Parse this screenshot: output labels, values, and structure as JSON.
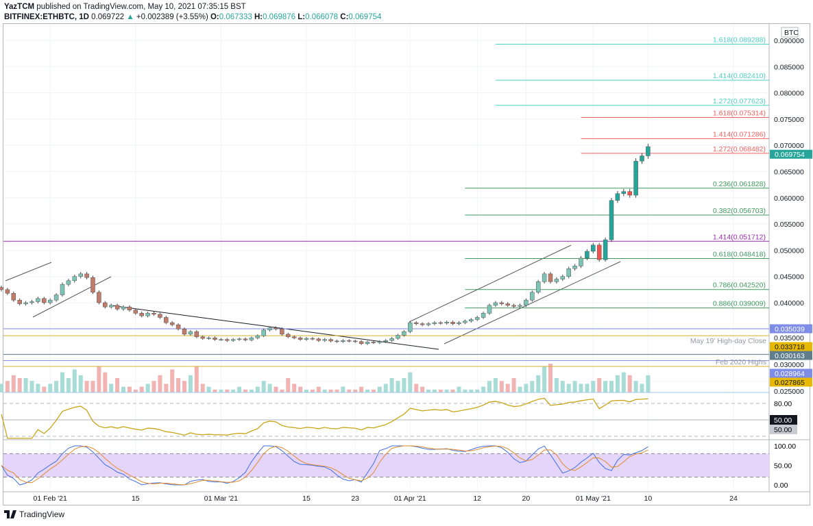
{
  "header": {
    "author": "YazTCM",
    "published": "published on TradingView.com, May 10, 2021 07:35:15 BST",
    "symbol": "BITFINEX:ETHBTC, 1D",
    "last": "0.069722",
    "change": "+0.002389 (+3.55%)",
    "o_label": "O:",
    "o": "0.067333",
    "h_label": "H:",
    "h": "0.069876",
    "l_label": "L:",
    "l": "0.066078",
    "c_label": "C:",
    "c": "0.069754"
  },
  "footer": {
    "brand": "TradingView"
  },
  "colors": {
    "up": "#26a69a",
    "down": "#ef5350",
    "teal": "#4dd0c4",
    "red": "#f06060",
    "green": "#3d9a5c",
    "purple": "#9c27b0",
    "blue": "#7e8ee8",
    "gold": "#d4b12a",
    "rsi": "#c8a415",
    "stochK": "#3f6fe0",
    "stochD": "#e08a2a",
    "band": "#e6d5fb"
  },
  "chart_data": {
    "type": "candlestick",
    "currency": "BTC",
    "start_date": "2021-01-24",
    "closes": [
      0.0425,
      0.0418,
      0.0405,
      0.0398,
      0.04,
      0.0402,
      0.0408,
      0.04,
      0.0405,
      0.0415,
      0.0435,
      0.0442,
      0.045,
      0.0455,
      0.0448,
      0.042,
      0.04,
      0.0392,
      0.0395,
      0.0388,
      0.0392,
      0.0386,
      0.038,
      0.0375,
      0.038,
      0.0378,
      0.0372,
      0.0362,
      0.0358,
      0.035,
      0.034,
      0.0345,
      0.0335,
      0.0332,
      0.0333,
      0.033,
      0.033,
      0.0328,
      0.033,
      0.0331,
      0.0329,
      0.0333,
      0.0337,
      0.0348,
      0.0352,
      0.035,
      0.034,
      0.0335,
      0.0333,
      0.033,
      0.0332,
      0.0331,
      0.0328,
      0.033,
      0.0327,
      0.0326,
      0.0328,
      0.0327,
      0.0326,
      0.0322,
      0.0325,
      0.0324,
      0.0326,
      0.0328,
      0.0332,
      0.0338,
      0.0345,
      0.0362,
      0.036,
      0.0358,
      0.036,
      0.0362,
      0.0361,
      0.0363,
      0.036,
      0.0362,
      0.0365,
      0.0368,
      0.0372,
      0.038,
      0.0395,
      0.04,
      0.0398,
      0.0395,
      0.0393,
      0.0395,
      0.0405,
      0.042,
      0.044,
      0.0455,
      0.044,
      0.0445,
      0.045,
      0.0465,
      0.047,
      0.0485,
      0.0498,
      0.051,
      0.0482,
      0.052,
      0.0595,
      0.0608,
      0.0612,
      0.0605,
      0.067,
      0.068,
      0.069754
    ],
    "volume": [
      3,
      4,
      6,
      5,
      5,
      4,
      3,
      2,
      3,
      4,
      7,
      5,
      8,
      6,
      4,
      4,
      9,
      7,
      3,
      5,
      2,
      2,
      1,
      2,
      3,
      4,
      6,
      3,
      8,
      5,
      4,
      6,
      9,
      3,
      2,
      1,
      1,
      1,
      1,
      2,
      1,
      1,
      2,
      4,
      3,
      2,
      1,
      5,
      3,
      2,
      1,
      1,
      2,
      1,
      1,
      1,
      2,
      1,
      1,
      2,
      1,
      1,
      2,
      3,
      5,
      4,
      5,
      7,
      3,
      2,
      1,
      1,
      1,
      1,
      1,
      2,
      1,
      1,
      1,
      2,
      4,
      5,
      4,
      3,
      5,
      2,
      3,
      4,
      6,
      9,
      10,
      5,
      4,
      3,
      4,
      3,
      3,
      4,
      5,
      4,
      4,
      6,
      7,
      6,
      4,
      3,
      6
    ],
    "price_axis": {
      "min": 0.025,
      "max": 0.09,
      "ticks": [
        "0.090000",
        "0.085000",
        "0.080000",
        "0.075000",
        "0.070000",
        "0.065000",
        "0.060000",
        "0.055000",
        "0.050000",
        "0.045000",
        "0.040000",
        "0.035000",
        "0.030000",
        "0.025000"
      ]
    },
    "date_ticks": [
      {
        "label": "01 Feb '21",
        "day": 8
      },
      {
        "label": "15",
        "day": 22
      },
      {
        "label": "01 Mar '21",
        "day": 36
      },
      {
        "label": "15",
        "day": 50
      },
      {
        "label": "23",
        "day": 58
      },
      {
        "label": "01 Apr '21",
        "day": 67
      },
      {
        "label": "12",
        "day": 78
      },
      {
        "label": "20",
        "day": 86
      },
      {
        "label": "01 May '21",
        "day": 97
      },
      {
        "label": "10",
        "day": 106
      },
      {
        "label": "24",
        "day": 120
      }
    ],
    "fib_levels": [
      {
        "label": "1.618(0.089288)",
        "value": 0.089288,
        "color": "teal",
        "from_day": 81
      },
      {
        "label": "1.414(0.082410)",
        "value": 0.08241,
        "color": "teal",
        "from_day": 81
      },
      {
        "label": "1.272(0.077623)",
        "value": 0.077623,
        "color": "teal",
        "from_day": 81
      },
      {
        "label": "1.618(0.075314)",
        "value": 0.075314,
        "color": "red",
        "from_day": 95
      },
      {
        "label": "1.414(0.071286)",
        "value": 0.071286,
        "color": "red",
        "from_day": 95
      },
      {
        "label": "1.272(0.068482)",
        "value": 0.068482,
        "color": "red",
        "from_day": 95
      },
      {
        "label": "0.236(0.061828)",
        "value": 0.061828,
        "color": "green",
        "from_day": 76
      },
      {
        "label": "0.382(0.056703)",
        "value": 0.056703,
        "color": "green",
        "from_day": 76
      },
      {
        "label": "1.414(0.051712)",
        "value": 0.051712,
        "color": "purple",
        "from_day": 0
      },
      {
        "label": "0.618(0.048418)",
        "value": 0.048418,
        "color": "green",
        "from_day": 76
      },
      {
        "label": "0.786(0.042520)",
        "value": 0.04252,
        "color": "green",
        "from_day": 76
      },
      {
        "label": "0.886(0.039009)",
        "value": 0.039009,
        "color": "green",
        "from_day": 76
      }
    ],
    "hlines": [
      {
        "price": "0.035039",
        "value": 0.035039,
        "color": "blue",
        "note": ""
      },
      {
        "price": "0.033718",
        "value": 0.033718,
        "color": "gold",
        "note": "May 19' High-day Close"
      },
      {
        "price": "0.030163",
        "value": 0.030163,
        "color": "gray",
        "note": ""
      },
      {
        "price": "0.028964",
        "value": 0.028964,
        "color": "blue",
        "note": ""
      },
      {
        "price": "0.027865",
        "value": 0.027865,
        "color": "gold",
        "note": "Feb 2020 Highs"
      }
    ],
    "last_price_label": "0.069754",
    "rsi_axis": [
      "80.00",
      "50.00",
      "50.00"
    ],
    "stoch_axis": [
      "100.00",
      "50.00",
      "0.00"
    ]
  }
}
